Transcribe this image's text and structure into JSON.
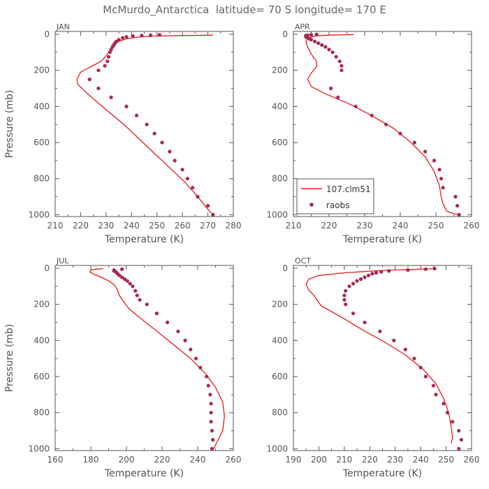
{
  "title": "McMurdo_Antarctica  latitude= 70 S longitude= 170 E",
  "legend": {
    "model_label": "107.clm51",
    "obs_label": "raobs",
    "model_color": "#e41a1c",
    "obs_color": "#a8294f"
  },
  "chart_data": [
    {
      "type": "line",
      "panel": "JAN",
      "xlabel": "Temperature (K)",
      "ylabel": "Pressure (mb)",
      "xlim": [
        210,
        280
      ],
      "ylim": [
        1010,
        0
      ],
      "xticks": [
        210,
        220,
        230,
        240,
        250,
        260,
        270,
        280
      ],
      "yticks": [
        0,
        200,
        400,
        600,
        800,
        1000
      ],
      "series": [
        {
          "name": "107.clm51",
          "type": "line",
          "x": [
            272,
            270,
            266,
            261,
            255,
            249,
            243,
            237,
            231,
            226,
            222,
            219,
            218.5,
            220,
            224,
            228,
            230,
            231.5,
            233,
            235,
            238,
            243,
            250,
            262,
            272
          ],
          "y": [
            1000,
            970,
            900,
            820,
            740,
            660,
            580,
            500,
            430,
            370,
            320,
            280,
            250,
            210,
            180,
            150,
            120,
            90,
            60,
            40,
            25,
            15,
            10,
            7,
            5
          ]
        },
        {
          "name": "raobs",
          "type": "scatter",
          "x": [
            272,
            270,
            266,
            264,
            262,
            260,
            257,
            255,
            252,
            249,
            246,
            242,
            238,
            232,
            227,
            223.5,
            227,
            229.5,
            230.5,
            231,
            231.5,
            232,
            232.5,
            233,
            233.5,
            234,
            235,
            236.5,
            238,
            240.5,
            244,
            247.5,
            251
          ],
          "y": [
            1000,
            950,
            900,
            850,
            800,
            750,
            700,
            650,
            600,
            550,
            500,
            450,
            400,
            350,
            300,
            250,
            200,
            175,
            150,
            125,
            100,
            85,
            70,
            60,
            50,
            40,
            30,
            20,
            15,
            10,
            7,
            5,
            3
          ]
        }
      ]
    },
    {
      "type": "line",
      "panel": "APR",
      "xlabel": "Temperature (K)",
      "ylabel": "",
      "xlim": [
        210,
        260
      ],
      "ylim": [
        1010,
        0
      ],
      "xticks": [
        210,
        220,
        230,
        240,
        250,
        260
      ],
      "yticks": [
        0,
        200,
        400,
        600,
        800,
        1000
      ],
      "series": [
        {
          "name": "107.clm51",
          "type": "line",
          "x": [
            256,
            253,
            252,
            251.5,
            251,
            249.5,
            247,
            243,
            238,
            231,
            225,
            219,
            215,
            214,
            215,
            216.5,
            216.5,
            215,
            214,
            213.5,
            214,
            216,
            220,
            227
          ],
          "y": [
            1000,
            980,
            940,
            900,
            840,
            760,
            680,
            600,
            520,
            440,
            380,
            330,
            290,
            250,
            215,
            180,
            150,
            110,
            70,
            40,
            20,
            10,
            5,
            2
          ]
        },
        {
          "name": "raobs",
          "type": "scatter",
          "x": [
            256.5,
            256,
            255.5,
            252,
            251.5,
            251,
            249.5,
            247,
            244,
            240,
            236,
            232,
            227.5,
            222.5,
            220.5,
            223.5,
            223.5,
            223,
            222,
            221,
            220,
            219,
            218,
            217,
            216,
            215,
            214.5,
            214,
            213.5,
            213.5,
            213.5,
            214,
            215,
            216.5
          ],
          "y": [
            1000,
            950,
            900,
            850,
            800,
            750,
            700,
            650,
            600,
            550,
            500,
            450,
            400,
            350,
            300,
            200,
            175,
            150,
            125,
            100,
            85,
            70,
            60,
            50,
            40,
            30,
            25,
            20,
            15,
            10,
            7,
            5,
            3,
            1
          ]
        }
      ]
    },
    {
      "type": "line",
      "panel": "JUL",
      "xlabel": "Temperature (K)",
      "ylabel": "Pressure (mb)",
      "xlim": [
        160,
        260
      ],
      "ylim": [
        1010,
        0
      ],
      "xticks": [
        160,
        180,
        200,
        220,
        240,
        260
      ],
      "yticks": [
        0,
        200,
        400,
        600,
        800,
        1000
      ],
      "series": [
        {
          "name": "107.clm51",
          "type": "line",
          "x": [
            249,
            251,
            254,
            255,
            254,
            250,
            244,
            236,
            226,
            216,
            207,
            201,
            198,
            196,
            195,
            193,
            190,
            186,
            182,
            179.5,
            180,
            183,
            187
          ],
          "y": [
            1000,
            960,
            900,
            820,
            740,
            660,
            580,
            500,
            420,
            340,
            270,
            220,
            180,
            150,
            120,
            90,
            70,
            50,
            35,
            20,
            10,
            5,
            2
          ]
        },
        {
          "name": "raobs",
          "type": "scatter",
          "x": [
            248,
            248.5,
            248,
            247.5,
            247.5,
            247.5,
            247,
            246,
            245,
            241.5,
            239,
            236,
            233,
            229,
            223,
            217,
            211.5,
            207.5,
            206,
            205,
            203.5,
            202,
            200.5,
            199,
            197.5,
            196,
            195,
            194.5,
            194,
            193,
            193,
            197.5
          ],
          "y": [
            1000,
            950,
            900,
            850,
            800,
            750,
            700,
            650,
            600,
            550,
            500,
            450,
            400,
            350,
            300,
            250,
            200,
            175,
            150,
            125,
            100,
            85,
            70,
            60,
            50,
            40,
            30,
            25,
            20,
            15,
            10,
            5
          ]
        }
      ]
    },
    {
      "type": "line",
      "panel": "OCT",
      "xlabel": "Temperature (K)",
      "ylabel": "",
      "xlim": [
        190,
        260
      ],
      "ylim": [
        1010,
        0
      ],
      "xticks": [
        190,
        200,
        210,
        220,
        230,
        240,
        250,
        260
      ],
      "yticks": [
        0,
        200,
        400,
        600,
        800,
        1000
      ],
      "series": [
        {
          "name": "107.clm51",
          "type": "line",
          "x": [
            252,
            252.5,
            252,
            251,
            249,
            246,
            241,
            234,
            226,
            217,
            210,
            205,
            201,
            199.5,
            198,
            196,
            195,
            196,
            200,
            210,
            225,
            240,
            246
          ],
          "y": [
            970,
            940,
            880,
            800,
            720,
            640,
            560,
            480,
            410,
            340,
            280,
            240,
            210,
            180,
            150,
            120,
            90,
            60,
            40,
            25,
            12,
            5,
            2
          ]
        },
        {
          "name": "raobs",
          "type": "scatter",
          "x": [
            255,
            256,
            255,
            252.5,
            250.5,
            249,
            246,
            245,
            242,
            240,
            237.5,
            234,
            229.5,
            224,
            218,
            213.5,
            210.5,
            210,
            210,
            210.5,
            212,
            213.5,
            215,
            216.5,
            218,
            219.5,
            221,
            222.5,
            224.5,
            227.5,
            235,
            242,
            245.5
          ],
          "y": [
            1000,
            950,
            900,
            850,
            800,
            750,
            700,
            650,
            600,
            550,
            500,
            450,
            400,
            350,
            300,
            250,
            200,
            175,
            150,
            125,
            100,
            85,
            70,
            60,
            50,
            40,
            30,
            25,
            20,
            15,
            10,
            5,
            2
          ]
        }
      ]
    }
  ]
}
